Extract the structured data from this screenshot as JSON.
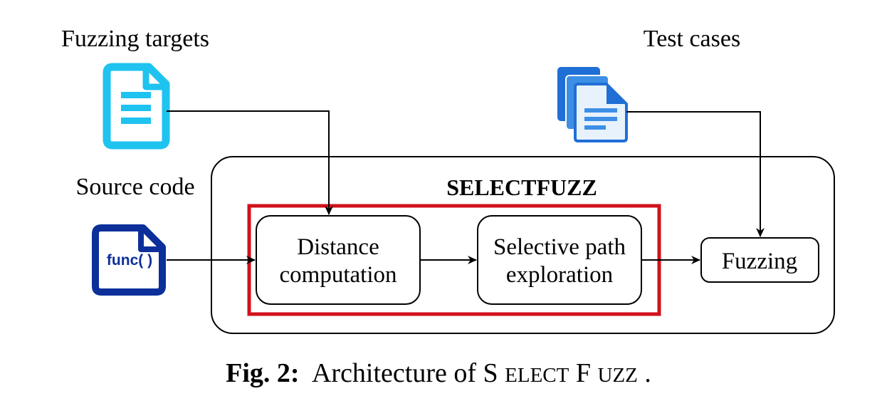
{
  "inputs": {
    "fuzzing_targets": "Fuzzing targets",
    "test_cases": "Test cases",
    "source_code": "Source code",
    "func_label": "func( )"
  },
  "system": {
    "name": "SELECTFUZZ",
    "boxes": {
      "distance_line1": "Distance",
      "distance_line2": "computation",
      "selective_line1": "Selective path",
      "selective_line2": "exploration",
      "fuzzing": "Fuzzing"
    }
  },
  "caption": {
    "prefix": "Fig. 2:",
    "text": "Architecture of ",
    "name_first_s": "S",
    "name_elect": "ELECT",
    "name_f": "F",
    "name_uzz": "UZZ",
    "period": "."
  },
  "colors": {
    "targets_doc": "#1ec3ef",
    "test_case_dark": "#1f6fd6",
    "test_case_mid": "#3d8fe6",
    "test_case_light": "#e8f2fc",
    "source_doc": "#0c2f9a",
    "highlight_box": "#d0121b",
    "line": "#000000"
  },
  "icons": {
    "targets": "document-icon",
    "test_cases": "multi-document-icon",
    "source": "code-file-icon"
  }
}
